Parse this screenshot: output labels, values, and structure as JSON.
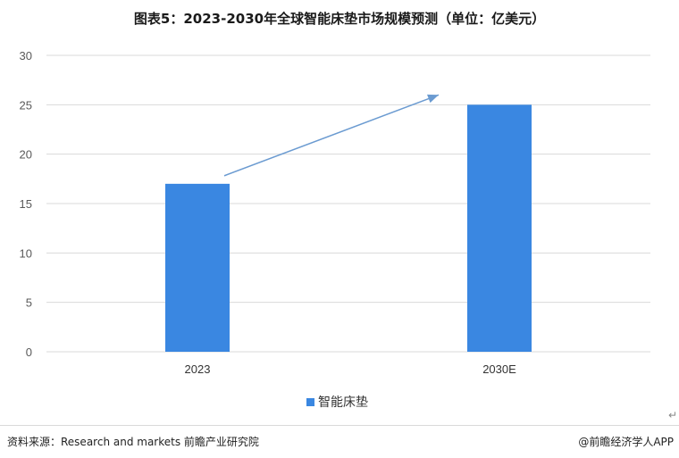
{
  "title": "图表5：2023-2030年全球智能床垫市场规模预测（单位：亿美元）",
  "source": "资料来源：Research and markets  前瞻产业研究院",
  "brand": "@前瞻经济学人APP",
  "return_mark": "↵",
  "colors": {
    "bar": "#3a87e1",
    "arrow": "#6b9bd1",
    "grid": "#d9d9d9",
    "axis_text": "#595959"
  },
  "chart_data": {
    "type": "bar",
    "title": "图表5：2023-2030年全球智能床垫市场规模预测（单位：亿美元）",
    "categories": [
      "2023",
      "2030E"
    ],
    "series": [
      {
        "name": "智能床垫",
        "values": [
          17,
          25
        ]
      }
    ],
    "ylim": [
      0,
      30
    ],
    "yticks": [
      0,
      5,
      10,
      15,
      20,
      25,
      30
    ],
    "xlabel": "",
    "ylabel": "",
    "grid": true,
    "legend": "bottom",
    "annotation": "upward trend arrow from 2023 bar to 2030E bar"
  }
}
